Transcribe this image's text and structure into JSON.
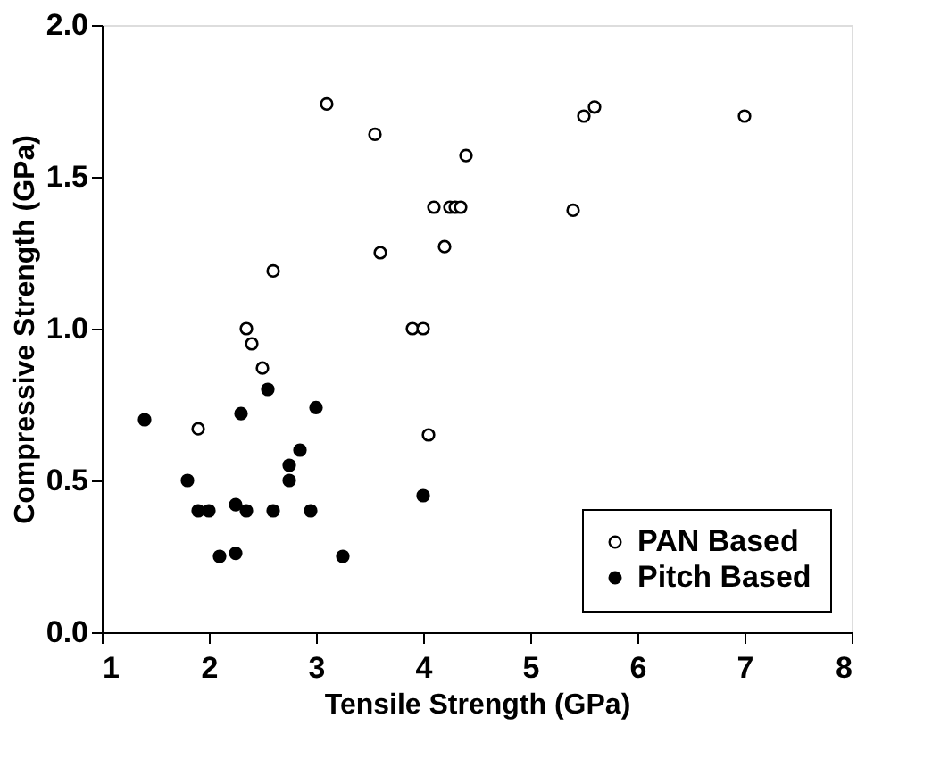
{
  "chart_data": {
    "type": "scatter",
    "xlabel": "Tensile Strength (GPa)",
    "ylabel": "Compressive Strength (GPa)",
    "xlim": [
      1,
      8
    ],
    "ylim": [
      0,
      2
    ],
    "xticks": [
      1,
      2,
      3,
      4,
      5,
      6,
      7,
      8
    ],
    "yticks": [
      {
        "value": 0,
        "label": "0.0"
      },
      {
        "value": 0.5,
        "label": "0.5"
      },
      {
        "value": 1,
        "label": "1.0"
      },
      {
        "value": 1.5,
        "label": "1.5"
      },
      {
        "value": 2,
        "label": "2.0"
      }
    ],
    "grid": false,
    "legend": "bottom right",
    "marker": "circle",
    "series": [
      {
        "name": "PAN Based",
        "color": "#000000",
        "x": [
          3.1,
          3.55,
          5.5,
          5.6,
          7.0,
          4.4,
          3.6,
          2.6,
          4.1,
          4.25,
          4.3,
          4.35,
          4.2,
          5.4,
          3.9,
          4.0,
          2.35,
          2.4,
          2.5,
          1.9,
          4.05
        ],
        "values": [
          1.74,
          1.64,
          1.7,
          1.73,
          1.7,
          1.57,
          1.25,
          1.19,
          1.4,
          1.4,
          1.4,
          1.4,
          1.27,
          1.39,
          1.0,
          1.0,
          1.0,
          0.95,
          0.87,
          0.67,
          0.65
        ]
      },
      {
        "name": "Pitch Based",
        "color": "#000000",
        "x": [
          1.4,
          1.8,
          1.9,
          2.0,
          2.1,
          2.25,
          2.3,
          2.25,
          2.35,
          2.55,
          2.6,
          2.75,
          2.75,
          2.85,
          2.95,
          3.0,
          3.25,
          4.0
        ],
        "values": [
          0.7,
          0.5,
          0.4,
          0.4,
          0.25,
          0.26,
          0.72,
          0.42,
          0.4,
          0.8,
          0.4,
          0.55,
          0.5,
          0.6,
          0.4,
          0.74,
          0.25,
          0.45
        ]
      }
    ]
  }
}
